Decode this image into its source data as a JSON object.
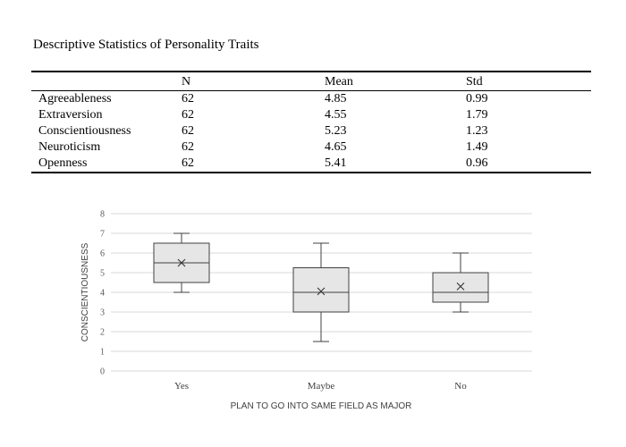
{
  "document": {
    "title": "Descriptive Statistics of Personality Traits"
  },
  "table": {
    "headers": [
      "",
      "N",
      "Mean",
      "Std"
    ],
    "rows": [
      [
        "Agreeableness",
        "62",
        "4.85",
        "0.99"
      ],
      [
        "Extraversion",
        "62",
        "4.55",
        "1.79"
      ],
      [
        "Conscientiousness",
        "62",
        "5.23",
        "1.23"
      ],
      [
        "Neuroticism",
        "62",
        "4.65",
        "1.49"
      ],
      [
        "Openness",
        "62",
        "5.41",
        "0.96"
      ]
    ]
  },
  "chart_data": {
    "type": "box",
    "title": "",
    "xlabel": "PLAN TO GO INTO SAME FIELD AS MAJOR",
    "ylabel": "CONSCIENTIOUSNESS",
    "ylim": [
      0,
      8
    ],
    "yticks": [
      "0",
      "1",
      "2",
      "3",
      "4",
      "5",
      "6",
      "7",
      "8"
    ],
    "grid": true,
    "categories": [
      "Yes",
      "Maybe",
      "No"
    ],
    "boxes": [
      {
        "min": 4,
        "q1": 4.5,
        "median": 5.5,
        "q3": 6.5,
        "max": 7,
        "mean": 5.5
      },
      {
        "min": 1.5,
        "q1": 3,
        "median": 4,
        "q3": 5.25,
        "max": 6.5,
        "mean": 4.05
      },
      {
        "min": 3,
        "q1": 3.5,
        "median": 4,
        "q3": 5,
        "max": 6,
        "mean": 4.3
      }
    ],
    "colors": {
      "box_fill": "#e6e6e6",
      "box_stroke": "#404040",
      "grid": "#d9d9d9"
    }
  }
}
